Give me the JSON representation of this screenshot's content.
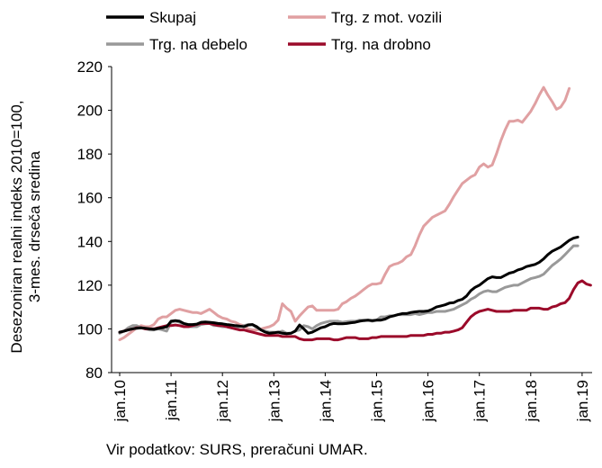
{
  "chart_data": {
    "type": "line",
    "title": "",
    "ylabel_lines": [
      "Desezoniran realni indeks 2010=100,",
      "3-mes. drseča sredina"
    ],
    "xlabel": "",
    "ylim": [
      80,
      220
    ],
    "yticks": [
      80,
      100,
      120,
      140,
      160,
      180,
      200,
      220
    ],
    "xticks": [
      "jan.10",
      "jan.11",
      "jan.12",
      "jan.13",
      "jan.14",
      "jan.15",
      "jan.16",
      "jan.17",
      "jan.18",
      "jan.19"
    ],
    "grid": false,
    "legend": "top",
    "source": "Vir podatkov: SURS, preračuni UMAR.",
    "series": [
      {
        "name": "Skupaj",
        "color": "#000000",
        "values": [
          98.5,
          99,
          99.5,
          100,
          100.3,
          100.5,
          100.3,
          100,
          99.8,
          100.2,
          100.5,
          101,
          103.5,
          103.8,
          103.5,
          102.5,
          102,
          102,
          102.2,
          103,
          103.2,
          103,
          102.8,
          102.5,
          102.3,
          102,
          101.8,
          101.5,
          101.3,
          101,
          101.8,
          102,
          101,
          99.5,
          98.5,
          98,
          98.2,
          98.5,
          98,
          97.8,
          98,
          99,
          101.8,
          100,
          98,
          98.5,
          99.5,
          100.5,
          101,
          102,
          102.5,
          102.3,
          102.3,
          102.5,
          102.8,
          103,
          103.5,
          103.8,
          104,
          103.8,
          104,
          104,
          104.5,
          105.5,
          106,
          106.5,
          107,
          107,
          107.5,
          107.8,
          108,
          108,
          108.2,
          109,
          110,
          110.5,
          111,
          111.8,
          112,
          113,
          113.5,
          115,
          117.5,
          119,
          120,
          121.5,
          123,
          123.8,
          123.5,
          123.5,
          124.5,
          125.5,
          126,
          127,
          127.5,
          128.5,
          129,
          129.5,
          130.5,
          132,
          134,
          135.5,
          136.5,
          137.5,
          139,
          140.5,
          141.5,
          142
        ]
      },
      {
        "name": "Trg. z mot. vozili",
        "color": "#e0a0a2",
        "values": [
          95,
          96,
          97.5,
          99,
          100.5,
          101.5,
          101,
          101,
          102,
          104.5,
          105.5,
          105.5,
          107,
          108.5,
          109,
          108.5,
          108,
          107.5,
          107.5,
          107,
          108,
          109,
          107.5,
          106,
          105,
          104.5,
          103.5,
          103,
          102,
          101.5,
          100,
          99.5,
          99.5,
          100,
          100.5,
          101,
          102,
          104,
          111.5,
          109.5,
          108,
          103.5,
          106,
          108,
          110,
          110.5,
          108.5,
          108.5,
          108.5,
          108.5,
          108.5,
          109,
          111.5,
          112.5,
          114,
          115,
          116.5,
          118,
          119.5,
          120.5,
          120.5,
          121,
          125,
          128.5,
          129.5,
          130,
          131,
          133,
          134,
          138,
          143,
          147,
          149,
          151,
          152,
          153,
          154,
          157,
          160.5,
          163.5,
          166.5,
          168,
          169.5,
          170.5,
          174,
          175.5,
          174,
          175,
          180,
          186,
          191,
          195,
          195,
          195.5,
          194.5,
          197,
          199.5,
          203,
          207,
          210.5,
          207,
          204,
          200.5,
          201.5,
          204.5,
          210
        ]
      },
      {
        "name": "Trg. na debelo",
        "color": "#999999",
        "values": [
          98,
          99,
          100.5,
          101.5,
          101.5,
          100.5,
          100,
          99.5,
          99.5,
          100,
          99.5,
          99,
          103,
          103.5,
          103,
          102,
          101,
          101,
          101,
          102,
          102.3,
          102.5,
          101.5,
          101.5,
          101,
          101,
          100.5,
          100.5,
          101,
          101.5,
          102,
          102,
          100.5,
          99.5,
          99,
          98.5,
          98.5,
          98.5,
          99,
          98,
          98,
          99,
          99.5,
          101.5,
          101,
          100,
          101.5,
          102.5,
          103,
          103.5,
          103.5,
          103.5,
          103,
          103.3,
          103.5,
          103.5,
          104,
          104,
          104,
          103.5,
          104,
          105.5,
          105.5,
          106,
          106,
          106.5,
          106.5,
          106.5,
          106.5,
          107,
          106.5,
          107,
          107.5,
          107.5,
          108,
          108,
          108,
          108.5,
          109,
          110,
          111,
          112,
          113.5,
          114.5,
          116,
          117,
          117.5,
          117,
          117,
          118,
          119,
          119.5,
          120,
          120,
          121,
          122,
          123,
          123.5,
          124,
          125,
          127,
          129,
          130.5,
          132,
          134,
          136,
          138,
          138
        ]
      },
      {
        "name": "Trg. na drobno",
        "color": "#9b0a2a",
        "values": [
          98.5,
          99,
          99.5,
          100,
          100.5,
          100.5,
          100,
          100,
          100,
          100.5,
          101,
          101.5,
          101.5,
          101.8,
          101.5,
          101,
          101,
          101.5,
          102,
          102.5,
          102.5,
          102.5,
          102,
          101.5,
          101.5,
          101,
          100.5,
          100,
          99.5,
          99.5,
          99,
          98.5,
          98,
          97.5,
          97,
          97,
          97,
          97,
          96.5,
          96.5,
          96.5,
          96.5,
          95.5,
          95,
          95,
          95,
          95.5,
          95.5,
          95.5,
          95.5,
          95,
          95,
          95.5,
          96,
          96,
          96,
          95.5,
          95.5,
          95.5,
          96,
          96,
          96.5,
          96.5,
          96.5,
          96.5,
          96.5,
          96.5,
          96.5,
          97,
          97,
          97,
          97,
          97.5,
          97.5,
          98,
          98,
          98.5,
          98.5,
          99,
          99.5,
          100.5,
          103,
          105.5,
          107,
          108,
          108.5,
          109,
          108.5,
          108,
          108,
          108,
          108,
          108.5,
          108.5,
          108.5,
          108.5,
          109.5,
          109.5,
          109.5,
          109,
          109,
          110,
          110.5,
          111.5,
          112,
          114,
          118,
          121,
          122,
          120.5,
          120
        ]
      }
    ]
  }
}
